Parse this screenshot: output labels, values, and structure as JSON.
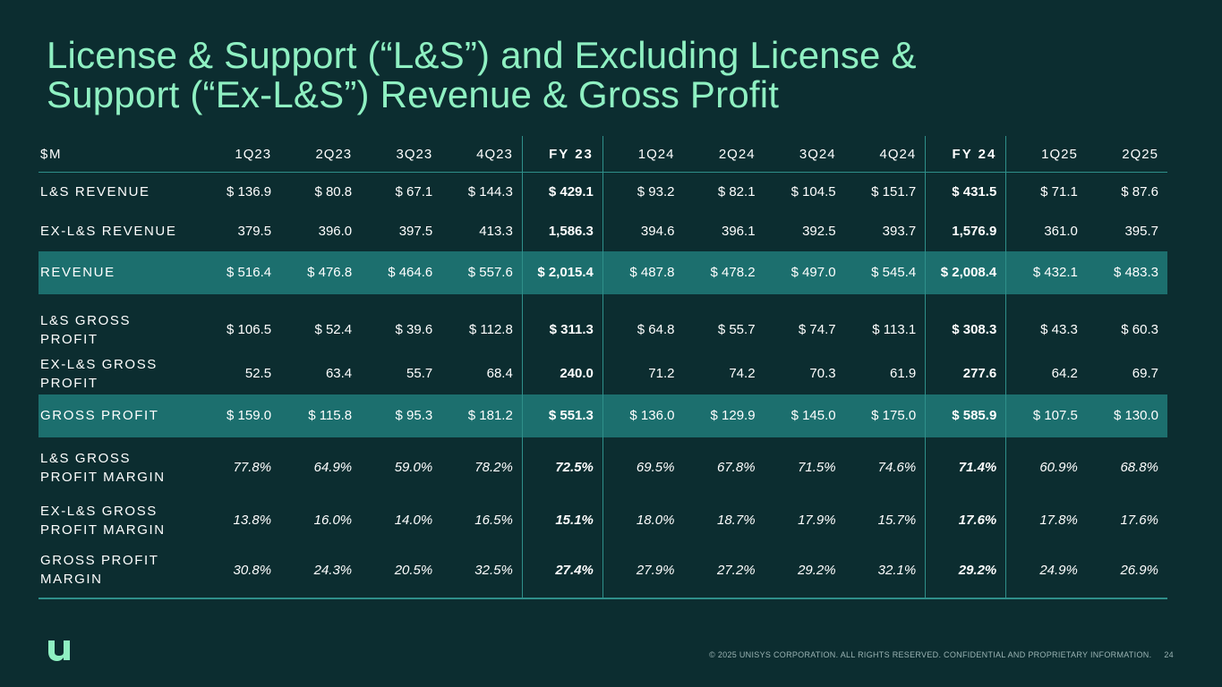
{
  "title": {
    "line1": "License & Support (“L&S”) and Excluding License &",
    "line2": "Support (“Ex-L&S”) Revenue & Gross Profit"
  },
  "table": {
    "headers": [
      "$M",
      "1Q23",
      "2Q23",
      "3Q23",
      "4Q23",
      "FY 23",
      "1Q24",
      "2Q24",
      "3Q24",
      "4Q24",
      "FY 24",
      "1Q25",
      "2Q25"
    ],
    "rows": [
      {
        "label": "L&S REVENUE",
        "values": [
          "$ 136.9",
          "$ 80.8",
          "$ 67.1",
          "$ 144.3",
          "$ 429.1",
          "$ 93.2",
          "$ 82.1",
          "$ 104.5",
          "$ 151.7",
          "$ 431.5",
          "$ 71.1",
          "$ 87.6"
        ]
      },
      {
        "label": "EX-L&S REVENUE",
        "values": [
          "379.5",
          "396.0",
          "397.5",
          "413.3",
          "1,586.3",
          "394.6",
          "396.1",
          "392.5",
          "393.7",
          "1,576.9",
          "361.0",
          "395.7"
        ]
      },
      {
        "label": "REVENUE",
        "values": [
          "$ 516.4",
          "$ 476.8",
          "$ 464.6",
          "$ 557.6",
          "$ 2,015.4",
          "$ 487.8",
          "$ 478.2",
          "$ 497.0",
          "$ 545.4",
          "$ 2,008.4",
          "$ 432.1",
          "$ 483.3"
        ]
      },
      {
        "label": "L&S GROSS PROFIT",
        "values": [
          "$ 106.5",
          "$ 52.4",
          "$ 39.6",
          "$ 112.8",
          "$ 311.3",
          "$ 64.8",
          "$ 55.7",
          "$ 74.7",
          "$ 113.1",
          "$ 308.3",
          "$ 43.3",
          "$ 60.3"
        ]
      },
      {
        "label": "EX-L&S GROSS PROFIT",
        "values": [
          "52.5",
          "63.4",
          "55.7",
          "68.4",
          "240.0",
          "71.2",
          "74.2",
          "70.3",
          "61.9",
          "277.6",
          "64.2",
          "69.7"
        ]
      },
      {
        "label": "GROSS PROFIT",
        "values": [
          "$ 159.0",
          "$ 115.8",
          "$ 95.3",
          "$ 181.2",
          "$ 551.3",
          "$ 136.0",
          "$ 129.9",
          "$ 145.0",
          "$ 175.0",
          "$ 585.9",
          "$ 107.5",
          "$ 130.0"
        ]
      },
      {
        "label": "L&S GROSS PROFIT MARGIN",
        "values": [
          "77.8%",
          "64.9%",
          "59.0%",
          "78.2%",
          "72.5%",
          "69.5%",
          "67.8%",
          "71.5%",
          "74.6%",
          "71.4%",
          "60.9%",
          "68.8%"
        ]
      },
      {
        "label": "EX-L&S GROSS PROFIT MARGIN",
        "values": [
          "13.8%",
          "16.0%",
          "14.0%",
          "16.5%",
          "15.1%",
          "18.0%",
          "18.7%",
          "17.9%",
          "15.7%",
          "17.6%",
          "17.8%",
          "17.6%"
        ]
      },
      {
        "label": "GROSS PROFIT MARGIN",
        "values": [
          "30.8%",
          "24.3%",
          "20.5%",
          "32.5%",
          "27.4%",
          "27.9%",
          "27.2%",
          "29.2%",
          "32.1%",
          "29.2%",
          "24.9%",
          "26.9%"
        ]
      }
    ]
  },
  "footer": {
    "copyright": "© 2025 UNISYS CORPORATION. ALL RIGHTS RESERVED. CONFIDENTIAL AND PROPRIETARY INFORMATION.",
    "page_number": "24"
  },
  "logo": {
    "icon": "unisys-u-logo",
    "color": "#8ff0c2"
  },
  "colors": {
    "background": "#0c2d30",
    "title": "#8ff0c2",
    "highlight_row": "#1c6f6e",
    "rule": "#2f8f8a"
  }
}
